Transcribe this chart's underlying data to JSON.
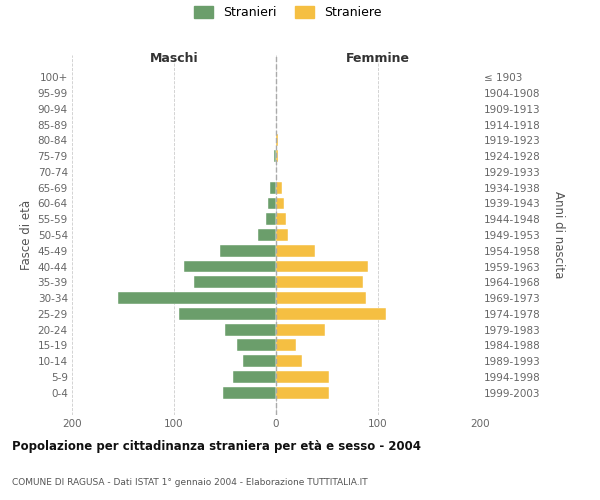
{
  "age_groups": [
    "100+",
    "95-99",
    "90-94",
    "85-89",
    "80-84",
    "75-79",
    "70-74",
    "65-69",
    "60-64",
    "55-59",
    "50-54",
    "45-49",
    "40-44",
    "35-39",
    "30-34",
    "25-29",
    "20-24",
    "15-19",
    "10-14",
    "5-9",
    "0-4"
  ],
  "birth_years": [
    "≤ 1903",
    "1904-1908",
    "1909-1913",
    "1914-1918",
    "1919-1923",
    "1924-1928",
    "1929-1933",
    "1934-1938",
    "1939-1943",
    "1944-1948",
    "1949-1953",
    "1954-1958",
    "1959-1963",
    "1964-1968",
    "1969-1973",
    "1974-1978",
    "1979-1983",
    "1984-1988",
    "1989-1993",
    "1994-1998",
    "1999-2003"
  ],
  "males": [
    0,
    0,
    0,
    0,
    0,
    2,
    0,
    6,
    8,
    10,
    18,
    55,
    90,
    80,
    155,
    95,
    50,
    38,
    32,
    42,
    52
  ],
  "females": [
    0,
    0,
    0,
    0,
    2,
    2,
    0,
    6,
    8,
    10,
    12,
    38,
    90,
    85,
    88,
    108,
    48,
    20,
    25,
    52,
    52
  ],
  "male_color": "#6b9e6b",
  "female_color": "#f5bf42",
  "background_color": "#ffffff",
  "grid_color": "#cccccc",
  "title": "Popolazione per cittadinanza straniera per età e sesso - 2004",
  "subtitle": "COMUNE DI RAGUSA - Dati ISTAT 1° gennaio 2004 - Elaborazione TUTTITALIA.IT",
  "legend_male": "Stranieri",
  "legend_female": "Straniere",
  "xlabel_left": "Maschi",
  "xlabel_right": "Femmine",
  "ylabel_left": "Fasce di età",
  "ylabel_right": "Anni di nascita",
  "xlim": 200
}
